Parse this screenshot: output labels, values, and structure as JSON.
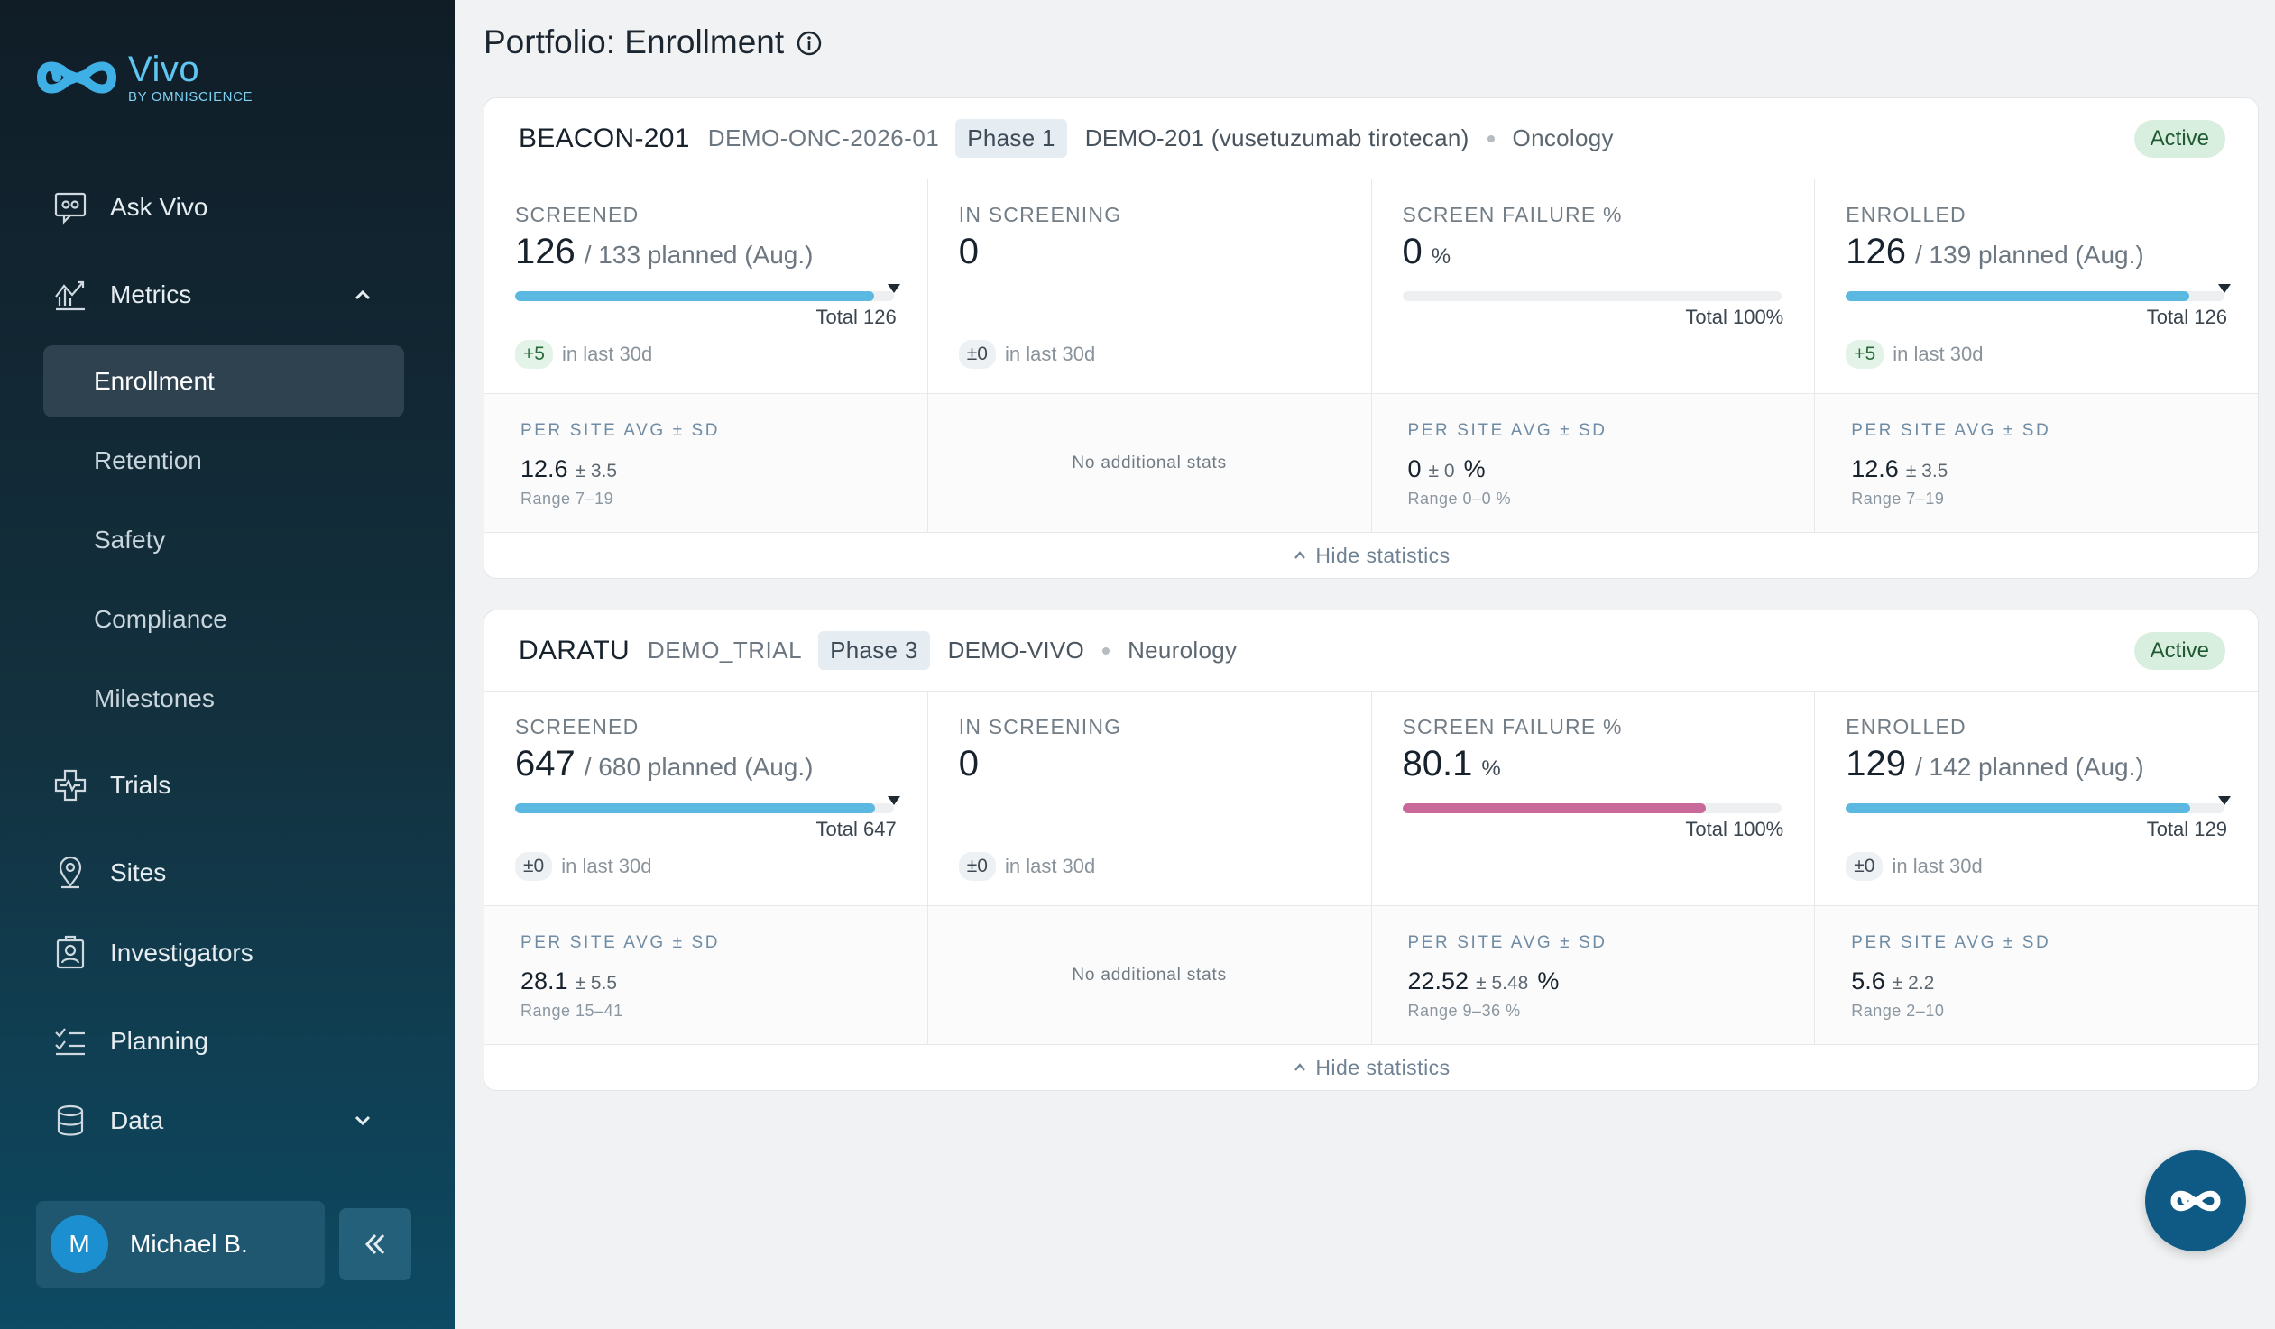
{
  "brand": {
    "name": "Vivo",
    "sub": "BY OMNISCIENCE"
  },
  "nav": {
    "ask": "Ask Vivo",
    "metrics": "Metrics",
    "metrics_sub": [
      "Enrollment",
      "Retention",
      "Safety",
      "Compliance",
      "Milestones"
    ],
    "trials": "Trials",
    "sites": "Sites",
    "investigators": "Investigators",
    "planning": "Planning",
    "data": "Data"
  },
  "user": {
    "initial": "M",
    "name": "Michael B."
  },
  "page": {
    "title": "Portfolio: Enrollment"
  },
  "cards": [
    {
      "name": "BEACON-201",
      "code": "DEMO-ONC-2026-01",
      "phase": "Phase 1",
      "drug": "DEMO-201 (vusetuzumab tirotecan)",
      "area": "Oncology",
      "status": "Active",
      "metrics": {
        "screened": {
          "label": "SCREENED",
          "value": "126",
          "planned": "/ 133 planned (Aug.)",
          "total": "Total 126",
          "delta": "+5",
          "delta_text": "in last 30d",
          "progress": 0.947
        },
        "in_screening": {
          "label": "IN SCREENING",
          "value": "0",
          "delta": "±0",
          "delta_text": "in last 30d"
        },
        "screen_failure": {
          "label": "SCREEN FAILURE %",
          "value": "0",
          "unit": "%",
          "total": "Total 100%",
          "progress": 0.0
        },
        "enrolled": {
          "label": "ENROLLED",
          "value": "126",
          "planned": "/ 139 planned (Aug.)",
          "total": "Total 126",
          "delta": "+5",
          "delta_text": "in last 30d",
          "progress": 0.906
        }
      },
      "stats": {
        "screened": {
          "label": "PER SITE AVG ± SD",
          "avg": "12.6",
          "sd": "± 3.5",
          "range": "Range 7–19"
        },
        "in_screening": {
          "empty": "No additional stats"
        },
        "screen_failure": {
          "label": "PER SITE AVG ± SD",
          "avg": "0",
          "sd": "± 0",
          "unit": "%",
          "range": "Range 0–0 %"
        },
        "enrolled": {
          "label": "PER SITE AVG ± SD",
          "avg": "12.6",
          "sd": "± 3.5",
          "range": "Range 7–19"
        }
      },
      "hide": "Hide statistics"
    },
    {
      "name": "DARATU",
      "code": "DEMO_TRIAL",
      "phase": "Phase 3",
      "drug": "DEMO-VIVO",
      "area": "Neurology",
      "status": "Active",
      "metrics": {
        "screened": {
          "label": "SCREENED",
          "value": "647",
          "planned": "/ 680 planned (Aug.)",
          "total": "Total 647",
          "delta": "±0",
          "delta_text": "in last 30d",
          "progress": 0.951
        },
        "in_screening": {
          "label": "IN SCREENING",
          "value": "0",
          "delta": "±0",
          "delta_text": "in last 30d"
        },
        "screen_failure": {
          "label": "SCREEN FAILURE %",
          "value": "80.1",
          "unit": "%",
          "total": "Total 100%",
          "progress": 0.801
        },
        "enrolled": {
          "label": "ENROLLED",
          "value": "129",
          "planned": "/ 142 planned (Aug.)",
          "total": "Total 129",
          "delta": "±0",
          "delta_text": "in last 30d",
          "progress": 0.908
        }
      },
      "stats": {
        "screened": {
          "label": "PER SITE AVG ± SD",
          "avg": "28.1",
          "sd": "± 5.5",
          "range": "Range 15–41"
        },
        "in_screening": {
          "empty": "No additional stats"
        },
        "screen_failure": {
          "label": "PER SITE AVG ± SD",
          "avg": "22.52",
          "sd": "± 5.48",
          "unit": "%",
          "range": "Range 9–36 %"
        },
        "enrolled": {
          "label": "PER SITE AVG ± SD",
          "avg": "5.6",
          "sd": "± 2.2",
          "range": "Range 2–10"
        }
      },
      "hide": "Hide statistics"
    }
  ],
  "colors": {
    "progress_blue": "#5bb8e0",
    "failure_pink": "#c9699a",
    "accent": "#0e5a85"
  },
  "icons": [
    "ask-vivo-icon",
    "metrics-icon",
    "trials-icon",
    "sites-icon",
    "investigators-icon",
    "planning-icon",
    "data-icon",
    "info-icon",
    "chevron-up-icon",
    "chevron-down-icon",
    "double-chevron-left-icon",
    "assistant-icon"
  ]
}
